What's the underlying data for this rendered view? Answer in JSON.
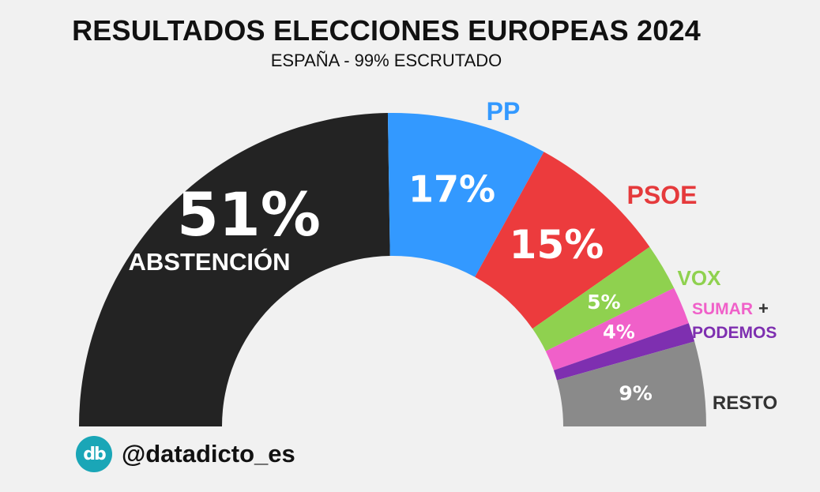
{
  "title": "RESULTADOS ELECCIONES EUROPEAS 2024",
  "subtitle": "ESPAÑA - 99% ESCRUTADO",
  "footer": {
    "handle": "@datadicto_es",
    "logo_text": "db"
  },
  "chart_data": {
    "type": "pie",
    "style": "semicircle-donut",
    "slices": [
      {
        "key": "abstencion",
        "label": "ABSTENCIÓN",
        "value": 51,
        "display": "51%",
        "color": "#232323",
        "label_color": "#ffffff"
      },
      {
        "key": "pp",
        "label": "PP",
        "value": 17,
        "display": "17%",
        "color": "#3399ff",
        "label_color": "#3399ff"
      },
      {
        "key": "psoe",
        "label": "PSOE",
        "value": 15,
        "display": "15%",
        "color": "#ec3b3d",
        "label_color": "#e53a3c"
      },
      {
        "key": "vox",
        "label": "VOX",
        "value": 5,
        "display": "5%",
        "color": "#8fd14f",
        "label_color": "#8fd14f"
      },
      {
        "key": "sumar",
        "label": "SUMAR",
        "value": 4,
        "display": "4%",
        "color": "#f060c9",
        "label_color": "#f060c9"
      },
      {
        "key": "podemos",
        "label": "PODEMOS",
        "value": 2,
        "display": "",
        "color": "#7e2fb0",
        "label_color": "#7e2fb0"
      },
      {
        "key": "resto",
        "label": "RESTO",
        "value": 9,
        "display": "9%",
        "color": "#8a8a8a",
        "label_color": "#333333"
      }
    ],
    "plus_sign": "+"
  }
}
